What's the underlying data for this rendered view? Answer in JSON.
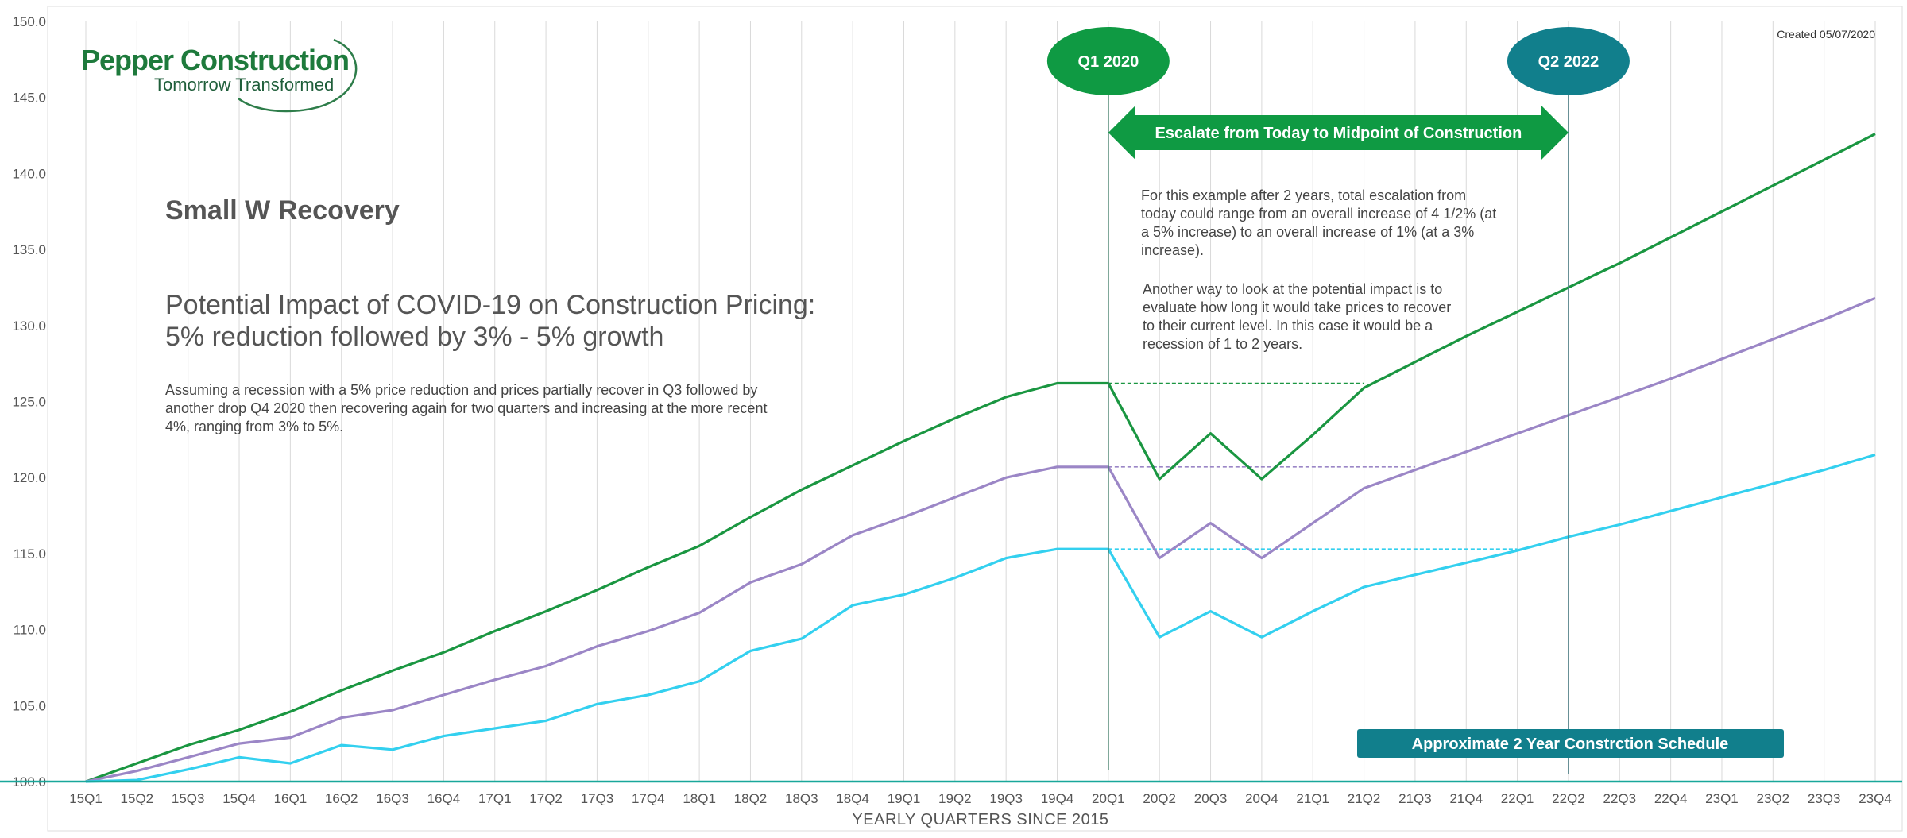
{
  "logo": {
    "name": "Pepper Construction",
    "tagline": "Tomorrow Transformed"
  },
  "created": "Created 05/07/2020",
  "scenario_title": "Small W Recovery",
  "headline": [
    "Potential Impact of COVID-19 on Construction Pricing:",
    "5% reduction followed by 3% - 5% growth"
  ],
  "assumption": [
    "Assuming a recession with a 5% price reduction and prices partially recover in Q3 followed by",
    "another drop Q4 2020 then recovering again for two quarters and increasing at the more recent",
    "4%, ranging from 3% to 5%."
  ],
  "note_1": [
    "For this example after 2 years, total escalation from",
    "today could range from an overall increase of 4 1/2% (at",
    "a 5% increase) to an overall increase of 1% (at a 3%",
    "increase)."
  ],
  "note_2": [
    "Another way to look at the potential impact is to",
    "evaluate how long it would take prices to recover",
    "to their current level. In this case it would be a",
    "recession of 1 to 2 years."
  ],
  "markers": {
    "start": {
      "label": "Q1 2020",
      "at": "20Q1",
      "color": "#0f9a43"
    },
    "end": {
      "label": "Q2 2022",
      "at": "22Q2",
      "color": "#117f8c"
    }
  },
  "escalate_arrow_label": "Escalate from Today to Midpoint of Construction",
  "schedule_label": "Approximate 2 Year Constrction Schedule",
  "colors": {
    "high": "#1a9641",
    "mid": "#9b86c6",
    "low": "#33d0ef",
    "arrow": "#0f9a43",
    "banner": "#117f8c",
    "baseline": "#19a79a",
    "grid": "#d9d9d9"
  },
  "chart_data": {
    "type": "line",
    "xlabel": "YEARLY QUARTERS SINCE 2015",
    "ylabel": "",
    "ylim": [
      100,
      150
    ],
    "yticks": [
      "100.0",
      "105.0",
      "110.0",
      "115.0",
      "120.0",
      "125.0",
      "130.0",
      "135.0",
      "140.0",
      "145.0",
      "150.0"
    ],
    "grid": "vertical",
    "categories": [
      "15Q1",
      "15Q2",
      "15Q3",
      "15Q4",
      "16Q1",
      "16Q2",
      "16Q3",
      "16Q4",
      "17Q1",
      "17Q2",
      "17Q3",
      "17Q4",
      "18Q1",
      "18Q2",
      "18Q3",
      "18Q4",
      "19Q1",
      "19Q2",
      "19Q3",
      "19Q4",
      "20Q1",
      "20Q2",
      "20Q3",
      "20Q4",
      "21Q1",
      "21Q2",
      "21Q3",
      "21Q4",
      "22Q1",
      "22Q2",
      "22Q3",
      "22Q4",
      "23Q1",
      "23Q2",
      "23Q3",
      "23Q4"
    ],
    "series": [
      {
        "key": "high",
        "values": [
          100.0,
          101.2,
          102.4,
          103.4,
          104.6,
          106.0,
          107.3,
          108.5,
          109.9,
          111.2,
          112.6,
          114.1,
          115.5,
          117.4,
          119.2,
          120.8,
          122.4,
          123.9,
          125.3,
          126.2,
          126.2,
          119.9,
          122.9,
          119.9,
          122.8,
          125.9,
          127.6,
          129.3,
          130.9,
          132.5,
          134.1,
          135.8,
          137.5,
          139.2,
          140.9,
          142.6
        ]
      },
      {
        "key": "mid",
        "values": [
          100.0,
          100.7,
          101.6,
          102.5,
          102.9,
          104.2,
          104.7,
          105.7,
          106.7,
          107.6,
          108.9,
          109.9,
          111.1,
          113.1,
          114.3,
          116.2,
          117.4,
          118.7,
          120.0,
          120.7,
          120.7,
          114.7,
          117.0,
          114.7,
          117.0,
          119.3,
          120.5,
          121.7,
          122.9,
          124.1,
          125.3,
          126.5,
          127.8,
          129.1,
          130.4,
          131.8
        ]
      },
      {
        "key": "low",
        "values": [
          100.0,
          100.1,
          100.8,
          101.6,
          101.2,
          102.4,
          102.1,
          103.0,
          103.5,
          104.0,
          105.1,
          105.7,
          106.6,
          108.6,
          109.4,
          111.6,
          112.3,
          113.4,
          114.7,
          115.3,
          115.3,
          109.5,
          111.2,
          109.5,
          111.2,
          112.8,
          113.6,
          114.4,
          115.2,
          116.1,
          116.9,
          117.8,
          118.7,
          119.6,
          120.5,
          121.5
        ]
      }
    ],
    "reference_lines": [
      {
        "key": "high",
        "value": 126.2,
        "from": "20Q1",
        "to": "21Q2"
      },
      {
        "key": "mid",
        "value": 120.7,
        "from": "20Q1",
        "to": "21Q3"
      },
      {
        "key": "low",
        "value": 115.3,
        "from": "20Q1",
        "to": "22Q1"
      }
    ]
  }
}
